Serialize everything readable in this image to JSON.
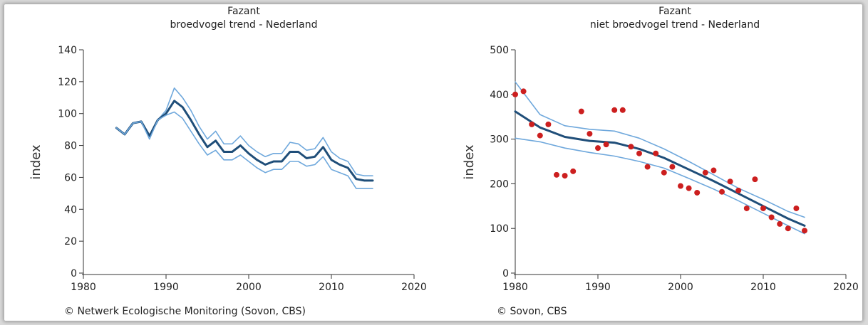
{
  "chart_data": [
    {
      "type": "line",
      "title": "Fazant",
      "subtitle": "broedvogel trend - Nederland",
      "xlabel": "",
      "ylabel": "index",
      "xlim": [
        1980,
        2020
      ],
      "ylim": [
        0,
        140
      ],
      "xticks": [
        1980,
        1990,
        2000,
        2010,
        2020
      ],
      "yticks": [
        0,
        20,
        40,
        60,
        80,
        100,
        120,
        140
      ],
      "grid": false,
      "colors": {
        "trend": "#1f4e79",
        "band": "#6fa8dc"
      },
      "credit": "© Netwerk Ecologische Monitoring (Sovon, CBS)",
      "series": [
        {
          "role": "upper",
          "x": [
            1984,
            1985,
            1986,
            1987,
            1988,
            1989,
            1990,
            1991,
            1992,
            1993,
            1994,
            1995,
            1996,
            1997,
            1998,
            1999,
            2000,
            2001,
            2002,
            2003,
            2004,
            2005,
            2006,
            2007,
            2008,
            2009,
            2010,
            2011,
            2012,
            2013,
            2014,
            2015
          ],
          "values": [
            91,
            87,
            94,
            95,
            86,
            96,
            102,
            116,
            110,
            102,
            92,
            84,
            89,
            81,
            81,
            86,
            80,
            76,
            73,
            75,
            75,
            82,
            81,
            77,
            78,
            85,
            76,
            72,
            70,
            62,
            61,
            61
          ]
        },
        {
          "role": "trend",
          "x": [
            1984,
            1985,
            1986,
            1987,
            1988,
            1989,
            1990,
            1991,
            1992,
            1993,
            1994,
            1995,
            1996,
            1997,
            1998,
            1999,
            2000,
            2001,
            2002,
            2003,
            2004,
            2005,
            2006,
            2007,
            2008,
            2009,
            2010,
            2011,
            2012,
            2013,
            2014,
            2015
          ],
          "values": [
            91,
            87,
            94,
            95,
            86,
            96,
            100,
            108,
            104,
            96,
            87,
            79,
            83,
            76,
            76,
            80,
            75,
            71,
            68,
            70,
            70,
            76,
            76,
            72,
            73,
            79,
            71,
            68,
            66,
            59,
            58,
            58
          ]
        },
        {
          "role": "lower",
          "x": [
            1984,
            1985,
            1986,
            1987,
            1988,
            1989,
            1990,
            1991,
            1992,
            1993,
            1994,
            1995,
            1996,
            1997,
            1998,
            1999,
            2000,
            2001,
            2002,
            2003,
            2004,
            2005,
            2006,
            2007,
            2008,
            2009,
            2010,
            2011,
            2012,
            2013,
            2014,
            2015
          ],
          "values": [
            91,
            87,
            94,
            95,
            84,
            96,
            99,
            101,
            97,
            89,
            81,
            74,
            77,
            71,
            71,
            74,
            70,
            66,
            63,
            65,
            65,
            70,
            70,
            67,
            68,
            73,
            65,
            63,
            61,
            53,
            53,
            53
          ]
        }
      ]
    },
    {
      "type": "scatter",
      "title": "Fazant",
      "subtitle": "niet broedvogel trend - Nederland",
      "xlabel": "",
      "ylabel": "index",
      "xlim": [
        1980,
        2020
      ],
      "ylim": [
        0,
        500
      ],
      "xticks": [
        1980,
        1990,
        2000,
        2010,
        2020
      ],
      "yticks": [
        0,
        100,
        200,
        300,
        400,
        500
      ],
      "grid": false,
      "colors": {
        "trend": "#1f4e79",
        "band": "#6fa8dc",
        "points": "#cc1f1f"
      },
      "credit": "© Sovon, CBS",
      "points": {
        "x": [
          1980,
          1981,
          1982,
          1983,
          1984,
          1985,
          1986,
          1987,
          1988,
          1989,
          1990,
          1991,
          1992,
          1993,
          1994,
          1995,
          1996,
          1997,
          1998,
          1999,
          2000,
          2001,
          2002,
          2003,
          2004,
          2005,
          2006,
          2007,
          2008,
          2009,
          2010,
          2011,
          2012,
          2013,
          2014,
          2015
        ],
        "values": [
          400,
          407,
          333,
          308,
          333,
          220,
          218,
          228,
          362,
          312,
          280,
          288,
          365,
          365,
          283,
          268,
          238,
          268,
          225,
          238,
          195,
          190,
          180,
          225,
          230,
          182,
          205,
          185,
          145,
          210,
          145,
          125,
          110,
          100,
          145,
          95
        ]
      },
      "series": [
        {
          "role": "upper",
          "x": [
            1980,
            1983,
            1986,
            1989,
            1992,
            1995,
            1998,
            2001,
            2004,
            2007,
            2010,
            2013,
            2015
          ],
          "values": [
            428,
            355,
            330,
            322,
            318,
            302,
            278,
            250,
            220,
            190,
            165,
            138,
            125
          ]
        },
        {
          "role": "trend",
          "x": [
            1980,
            1983,
            1986,
            1989,
            1992,
            1995,
            1998,
            2001,
            2004,
            2007,
            2010,
            2013,
            2015
          ],
          "values": [
            362,
            326,
            305,
            296,
            292,
            278,
            258,
            232,
            206,
            178,
            150,
            122,
            106
          ]
        },
        {
          "role": "lower",
          "x": [
            1980,
            1983,
            1986,
            1989,
            1992,
            1995,
            1998,
            2001,
            2004,
            2007,
            2010,
            2013,
            2015
          ],
          "values": [
            302,
            294,
            280,
            270,
            262,
            250,
            235,
            212,
            188,
            162,
            134,
            106,
            88
          ]
        }
      ]
    }
  ]
}
